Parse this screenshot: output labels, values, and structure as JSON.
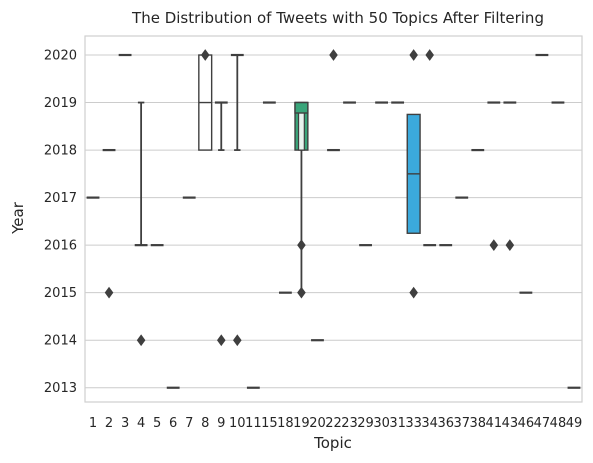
{
  "chart_data": {
    "type": "boxplot",
    "title": "The Distribution of Tweets with 50 Topics After Filtering",
    "xlabel": "Topic",
    "ylabel": "Year",
    "ylim": [
      2012.7,
      2020.4
    ],
    "yticks": [
      2013,
      2014,
      2015,
      2016,
      2017,
      2018,
      2019,
      2020
    ],
    "grid": "horizontal",
    "categories": [
      "1",
      "2",
      "3",
      "4",
      "5",
      "6",
      "7",
      "8",
      "9",
      "10",
      "11",
      "15",
      "18",
      "19",
      "20",
      "22",
      "23",
      "29",
      "30",
      "31",
      "33",
      "34",
      "36",
      "37",
      "38",
      "41",
      "43",
      "46",
      "47",
      "48",
      "49"
    ],
    "boxes": [
      {
        "topic": "1",
        "q1": 2017,
        "median": 2017,
        "q3": 2017,
        "whislo": 2017,
        "whishi": 2017,
        "fliers": []
      },
      {
        "topic": "2",
        "q1": 2018,
        "median": 2018,
        "q3": 2018,
        "whislo": 2018,
        "whishi": 2018,
        "fliers": [
          2015
        ]
      },
      {
        "topic": "3",
        "q1": 2020,
        "median": 2020,
        "q3": 2020,
        "whislo": 2020,
        "whishi": 2020,
        "fliers": []
      },
      {
        "topic": "4",
        "q1": 2016,
        "median": 2016,
        "q3": 2016,
        "whislo": 2016,
        "whishi": 2019,
        "fliers": [
          2014
        ]
      },
      {
        "topic": "5",
        "q1": 2016,
        "median": 2016,
        "q3": 2016,
        "whislo": 2016,
        "whishi": 2016,
        "fliers": []
      },
      {
        "topic": "6",
        "q1": 2013,
        "median": 2013,
        "q3": 2013,
        "whislo": 2013,
        "whishi": 2013,
        "fliers": []
      },
      {
        "topic": "7",
        "q1": 2017,
        "median": 2017,
        "q3": 2017,
        "whislo": 2017,
        "whishi": 2017,
        "fliers": []
      },
      {
        "topic": "8",
        "q1": 2018,
        "median": 2019,
        "q3": 2020,
        "whislo": 2018,
        "whishi": 2020,
        "fliers": [
          2020
        ]
      },
      {
        "topic": "9",
        "q1": 2019,
        "median": 2019,
        "q3": 2019,
        "whislo": 2018,
        "whishi": 2019,
        "fliers": [
          2014
        ]
      },
      {
        "topic": "10",
        "q1": 2020,
        "median": 2020,
        "q3": 2020,
        "whislo": 2018,
        "whishi": 2020,
        "fliers": [
          2014
        ]
      },
      {
        "topic": "11",
        "q1": 2013,
        "median": 2013,
        "q3": 2013,
        "whislo": 2013,
        "whishi": 2013,
        "fliers": []
      },
      {
        "topic": "15",
        "q1": 2019,
        "median": 2019,
        "q3": 2019,
        "whislo": 2019,
        "whishi": 2019,
        "fliers": []
      },
      {
        "topic": "18",
        "q1": 2015,
        "median": 2015,
        "q3": 2015,
        "whislo": 2015,
        "whishi": 2015,
        "fliers": []
      },
      {
        "topic": "19",
        "q1": 2018,
        "median": 2019,
        "q3": 2019,
        "whislo": 2015,
        "whishi": 2019,
        "fliers": [
          2016,
          2015
        ]
      },
      {
        "topic": "20",
        "q1": 2014,
        "median": 2014,
        "q3": 2014,
        "whislo": 2014,
        "whishi": 2014,
        "fliers": []
      },
      {
        "topic": "22",
        "q1": 2018,
        "median": 2018,
        "q3": 2018,
        "whislo": 2018,
        "whishi": 2018,
        "fliers": [
          2020
        ]
      },
      {
        "topic": "23",
        "q1": 2019,
        "median": 2019,
        "q3": 2019,
        "whislo": 2019,
        "whishi": 2019,
        "fliers": []
      },
      {
        "topic": "29",
        "q1": 2016,
        "median": 2016,
        "q3": 2016,
        "whislo": 2016,
        "whishi": 2016,
        "fliers": []
      },
      {
        "topic": "30",
        "q1": 2019,
        "median": 2019,
        "q3": 2019,
        "whislo": 2019,
        "whishi": 2019,
        "fliers": []
      },
      {
        "topic": "31",
        "q1": 2019,
        "median": 2019,
        "q3": 2019,
        "whislo": 2019,
        "whishi": 2019,
        "fliers": []
      },
      {
        "topic": "33",
        "q1": 2016.25,
        "median": 2017.5,
        "q3": 2018.75,
        "whislo": 2016.25,
        "whishi": 2018.75,
        "fliers": [
          2020,
          2015
        ]
      },
      {
        "topic": "34",
        "q1": 2016,
        "median": 2016,
        "q3": 2016,
        "whislo": 2016,
        "whishi": 2016,
        "fliers": [
          2020
        ]
      },
      {
        "topic": "36",
        "q1": 2016,
        "median": 2016,
        "q3": 2016,
        "whislo": 2016,
        "whishi": 2016,
        "fliers": []
      },
      {
        "topic": "37",
        "q1": 2017,
        "median": 2017,
        "q3": 2017,
        "whislo": 2017,
        "whishi": 2017,
        "fliers": []
      },
      {
        "topic": "38",
        "q1": 2018,
        "median": 2018,
        "q3": 2018,
        "whislo": 2018,
        "whishi": 2018,
        "fliers": []
      },
      {
        "topic": "41",
        "q1": 2019,
        "median": 2019,
        "q3": 2019,
        "whislo": 2019,
        "whishi": 2019,
        "fliers": [
          2016
        ]
      },
      {
        "topic": "43",
        "q1": 2019,
        "median": 2019,
        "q3": 2019,
        "whislo": 2019,
        "whishi": 2019,
        "fliers": [
          2016
        ]
      },
      {
        "topic": "46",
        "q1": 2015,
        "median": 2015,
        "q3": 2015,
        "whislo": 2015,
        "whishi": 2015,
        "fliers": []
      },
      {
        "topic": "47",
        "q1": 2020,
        "median": 2020,
        "q3": 2020,
        "whislo": 2020,
        "whishi": 2020,
        "fliers": []
      },
      {
        "topic": "48",
        "q1": 2019,
        "median": 2019,
        "q3": 2019,
        "whislo": 2019,
        "whishi": 2019,
        "fliers": []
      },
      {
        "topic": "49",
        "q1": 2013,
        "median": 2013,
        "q3": 2013,
        "whislo": 2013,
        "whishi": 2013,
        "fliers": []
      }
    ],
    "colors": {
      "box_19": "#3aa57a",
      "box_33": "#3ba9dc",
      "box_default": "#444444",
      "grid": "#cccccc",
      "line": "#3f3f3f",
      "frame": "#cfcfcf"
    }
  }
}
